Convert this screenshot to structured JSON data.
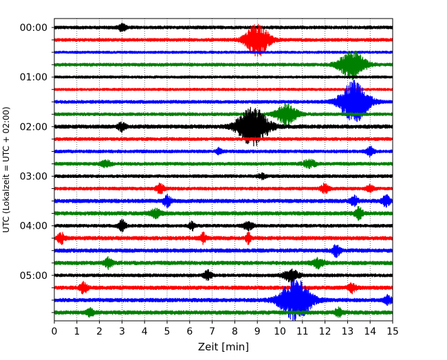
{
  "chart_data": {
    "type": "line",
    "xlabel": "Zeit  [min]",
    "ylabel": "UTC (Lokalzeit = UTC + 02:00)",
    "xlim": [
      0,
      15
    ],
    "x_ticks": [
      0,
      1,
      2,
      3,
      4,
      5,
      6,
      7,
      8,
      9,
      10,
      11,
      12,
      13,
      14,
      15
    ],
    "grid_x": "dotted",
    "trace_colors": [
      "#000000",
      "#ff0000",
      "#0000ff",
      "#008000"
    ],
    "rows_per_hour": 4,
    "row_minutes": 15,
    "hour_labels": [
      {
        "label": "00:00",
        "row": 0
      },
      {
        "label": "01:00",
        "row": 4
      },
      {
        "label": "02:00",
        "row": 8
      },
      {
        "label": "03:00",
        "row": 12
      },
      {
        "label": "04:00",
        "row": 16
      },
      {
        "label": "05:00",
        "row": 20
      }
    ],
    "traces": [
      {
        "row": 0,
        "color": "#000000",
        "noise": 0.25,
        "events": [
          {
            "t": 3.0,
            "amp": 0.6,
            "w": 0.3
          }
        ]
      },
      {
        "row": 1,
        "color": "#ff0000",
        "noise": 0.25,
        "events": [
          {
            "t": 9.0,
            "amp": 2.6,
            "w": 0.9
          }
        ]
      },
      {
        "row": 2,
        "color": "#0000ff",
        "noise": 0.2,
        "events": []
      },
      {
        "row": 3,
        "color": "#008000",
        "noise": 0.25,
        "events": [
          {
            "t": 13.2,
            "amp": 2.2,
            "w": 1.0
          }
        ]
      },
      {
        "row": 4,
        "color": "#000000",
        "noise": 0.2,
        "events": []
      },
      {
        "row": 5,
        "color": "#ff0000",
        "noise": 0.2,
        "events": []
      },
      {
        "row": 6,
        "color": "#0000ff",
        "noise": 0.25,
        "events": [
          {
            "t": 13.3,
            "amp": 3.4,
            "w": 1.1
          }
        ]
      },
      {
        "row": 7,
        "color": "#008000",
        "noise": 0.25,
        "events": [
          {
            "t": 10.3,
            "amp": 1.6,
            "w": 0.8
          }
        ]
      },
      {
        "row": 8,
        "color": "#000000",
        "noise": 0.3,
        "events": [
          {
            "t": 3.0,
            "amp": 0.7,
            "w": 0.3
          },
          {
            "t": 8.8,
            "amp": 3.0,
            "w": 1.2
          }
        ]
      },
      {
        "row": 9,
        "color": "#ff0000",
        "noise": 0.25,
        "events": []
      },
      {
        "row": 10,
        "color": "#0000ff",
        "noise": 0.25,
        "events": [
          {
            "t": 7.3,
            "amp": 0.6,
            "w": 0.2
          },
          {
            "t": 14.0,
            "amp": 0.7,
            "w": 0.3
          }
        ]
      },
      {
        "row": 11,
        "color": "#008000",
        "noise": 0.25,
        "events": [
          {
            "t": 2.3,
            "amp": 0.5,
            "w": 0.4
          },
          {
            "t": 11.3,
            "amp": 0.6,
            "w": 0.5
          }
        ]
      },
      {
        "row": 12,
        "color": "#000000",
        "noise": 0.25,
        "events": [
          {
            "t": 9.2,
            "amp": 0.4,
            "w": 0.3
          }
        ]
      },
      {
        "row": 13,
        "color": "#ff0000",
        "noise": 0.25,
        "events": [
          {
            "t": 4.7,
            "amp": 0.8,
            "w": 0.3
          },
          {
            "t": 12.0,
            "amp": 0.8,
            "w": 0.3
          },
          {
            "t": 14.0,
            "amp": 0.5,
            "w": 0.3
          }
        ]
      },
      {
        "row": 14,
        "color": "#0000ff",
        "noise": 0.3,
        "events": [
          {
            "t": 5.0,
            "amp": 0.9,
            "w": 0.3
          },
          {
            "t": 13.3,
            "amp": 0.7,
            "w": 0.3
          },
          {
            "t": 14.7,
            "amp": 0.9,
            "w": 0.3
          }
        ]
      },
      {
        "row": 15,
        "color": "#008000",
        "noise": 0.3,
        "events": [
          {
            "t": 4.5,
            "amp": 0.7,
            "w": 0.4
          },
          {
            "t": 13.5,
            "amp": 0.9,
            "w": 0.3
          }
        ]
      },
      {
        "row": 16,
        "color": "#000000",
        "noise": 0.25,
        "events": [
          {
            "t": 3.0,
            "amp": 0.8,
            "w": 0.3
          },
          {
            "t": 6.1,
            "amp": 0.7,
            "w": 0.2
          },
          {
            "t": 8.6,
            "amp": 0.6,
            "w": 0.4
          }
        ]
      },
      {
        "row": 17,
        "color": "#ff0000",
        "noise": 0.3,
        "events": [
          {
            "t": 0.3,
            "amp": 0.8,
            "w": 0.3
          },
          {
            "t": 6.6,
            "amp": 0.8,
            "w": 0.2
          },
          {
            "t": 8.6,
            "amp": 0.8,
            "w": 0.2
          }
        ]
      },
      {
        "row": 18,
        "color": "#0000ff",
        "noise": 0.3,
        "events": [
          {
            "t": 12.5,
            "amp": 0.9,
            "w": 0.3
          }
        ]
      },
      {
        "row": 19,
        "color": "#008000",
        "noise": 0.3,
        "events": [
          {
            "t": 2.4,
            "amp": 0.8,
            "w": 0.3
          },
          {
            "t": 11.7,
            "amp": 0.7,
            "w": 0.5
          }
        ]
      },
      {
        "row": 20,
        "color": "#000000",
        "noise": 0.25,
        "events": [
          {
            "t": 6.8,
            "amp": 0.7,
            "w": 0.3
          },
          {
            "t": 10.5,
            "amp": 0.9,
            "w": 0.6
          }
        ]
      },
      {
        "row": 21,
        "color": "#ff0000",
        "noise": 0.3,
        "events": [
          {
            "t": 1.3,
            "amp": 0.8,
            "w": 0.3
          },
          {
            "t": 13.2,
            "amp": 0.7,
            "w": 0.3
          }
        ]
      },
      {
        "row": 22,
        "color": "#0000ff",
        "noise": 0.3,
        "events": [
          {
            "t": 10.7,
            "amp": 3.2,
            "w": 1.2
          },
          {
            "t": 14.8,
            "amp": 0.7,
            "w": 0.3
          }
        ]
      },
      {
        "row": 23,
        "color": "#008000",
        "noise": 0.3,
        "events": [
          {
            "t": 1.6,
            "amp": 0.6,
            "w": 0.3
          },
          {
            "t": 12.6,
            "amp": 0.7,
            "w": 0.3
          }
        ]
      }
    ]
  }
}
